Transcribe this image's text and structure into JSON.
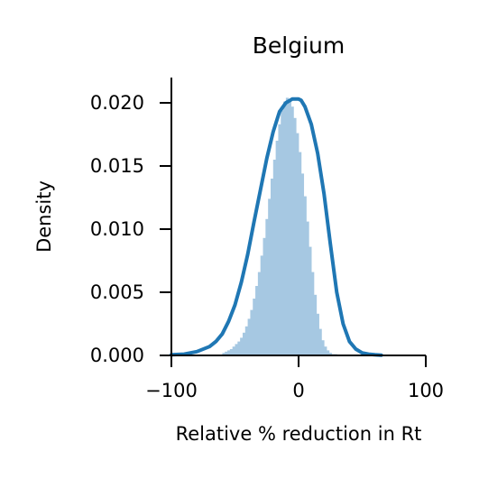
{
  "chart_data": {
    "type": "area",
    "title": "Belgium",
    "xlabel": "Relative % reduction in Rt",
    "ylabel": "Density",
    "xlim": [
      -100,
      100
    ],
    "ylim": [
      0,
      0.022
    ],
    "x_ticks": [
      -100,
      0,
      100
    ],
    "x_tick_labels": [
      "−100",
      "0",
      "100"
    ],
    "y_ticks": [
      0,
      0.005,
      0.01,
      0.015,
      0.02
    ],
    "y_tick_labels": [
      "0.000",
      "0.005",
      "0.010",
      "0.015",
      "0.020"
    ],
    "grid": false,
    "histogram": {
      "color": "#a6c8e2",
      "bin_width": 2,
      "bin_start": -60,
      "values": [
        0.0002,
        0.0003,
        0.0004,
        0.0005,
        0.0007,
        0.0009,
        0.0011,
        0.0014,
        0.0018,
        0.0023,
        0.0029,
        0.0036,
        0.0045,
        0.0055,
        0.0066,
        0.0079,
        0.0093,
        0.0108,
        0.0124,
        0.014,
        0.0155,
        0.017,
        0.0183,
        0.0194,
        0.0201,
        0.0204,
        0.0202,
        0.0197,
        0.0188,
        0.0176,
        0.0161,
        0.0144,
        0.0126,
        0.0106,
        0.0086,
        0.0066,
        0.0048,
        0.0033,
        0.0021,
        0.0012,
        0.0007,
        0.0004,
        0.0002,
        0.0001,
        0.0001,
        0.0,
        0.0,
        0.0,
        0.0,
        0.0,
        0.0,
        0.0,
        0.0,
        0.0,
        0.0,
        0.0,
        0.0,
        0.0,
        0.0,
        0.0,
        0.0,
        0.0
      ]
    },
    "kde": {
      "color": "#1f77b4",
      "x": [
        -100,
        -90,
        -80,
        -70,
        -65,
        -60,
        -55,
        -50,
        -45,
        -40,
        -35,
        -30,
        -25,
        -20,
        -15,
        -10,
        -5,
        0,
        2,
        5,
        10,
        15,
        20,
        25,
        30,
        35,
        40,
        45,
        50,
        55,
        60,
        65
      ],
      "y": [
        5e-05,
        0.0001,
        0.0003,
        0.0007,
        0.0011,
        0.0017,
        0.0027,
        0.004,
        0.0058,
        0.008,
        0.0106,
        0.0131,
        0.0156,
        0.0177,
        0.0193,
        0.02,
        0.0203,
        0.0203,
        0.0202,
        0.0197,
        0.0183,
        0.016,
        0.0128,
        0.0088,
        0.005,
        0.0025,
        0.0011,
        0.0005,
        0.0002,
        0.0001,
        5e-05,
        2e-05
      ]
    }
  }
}
